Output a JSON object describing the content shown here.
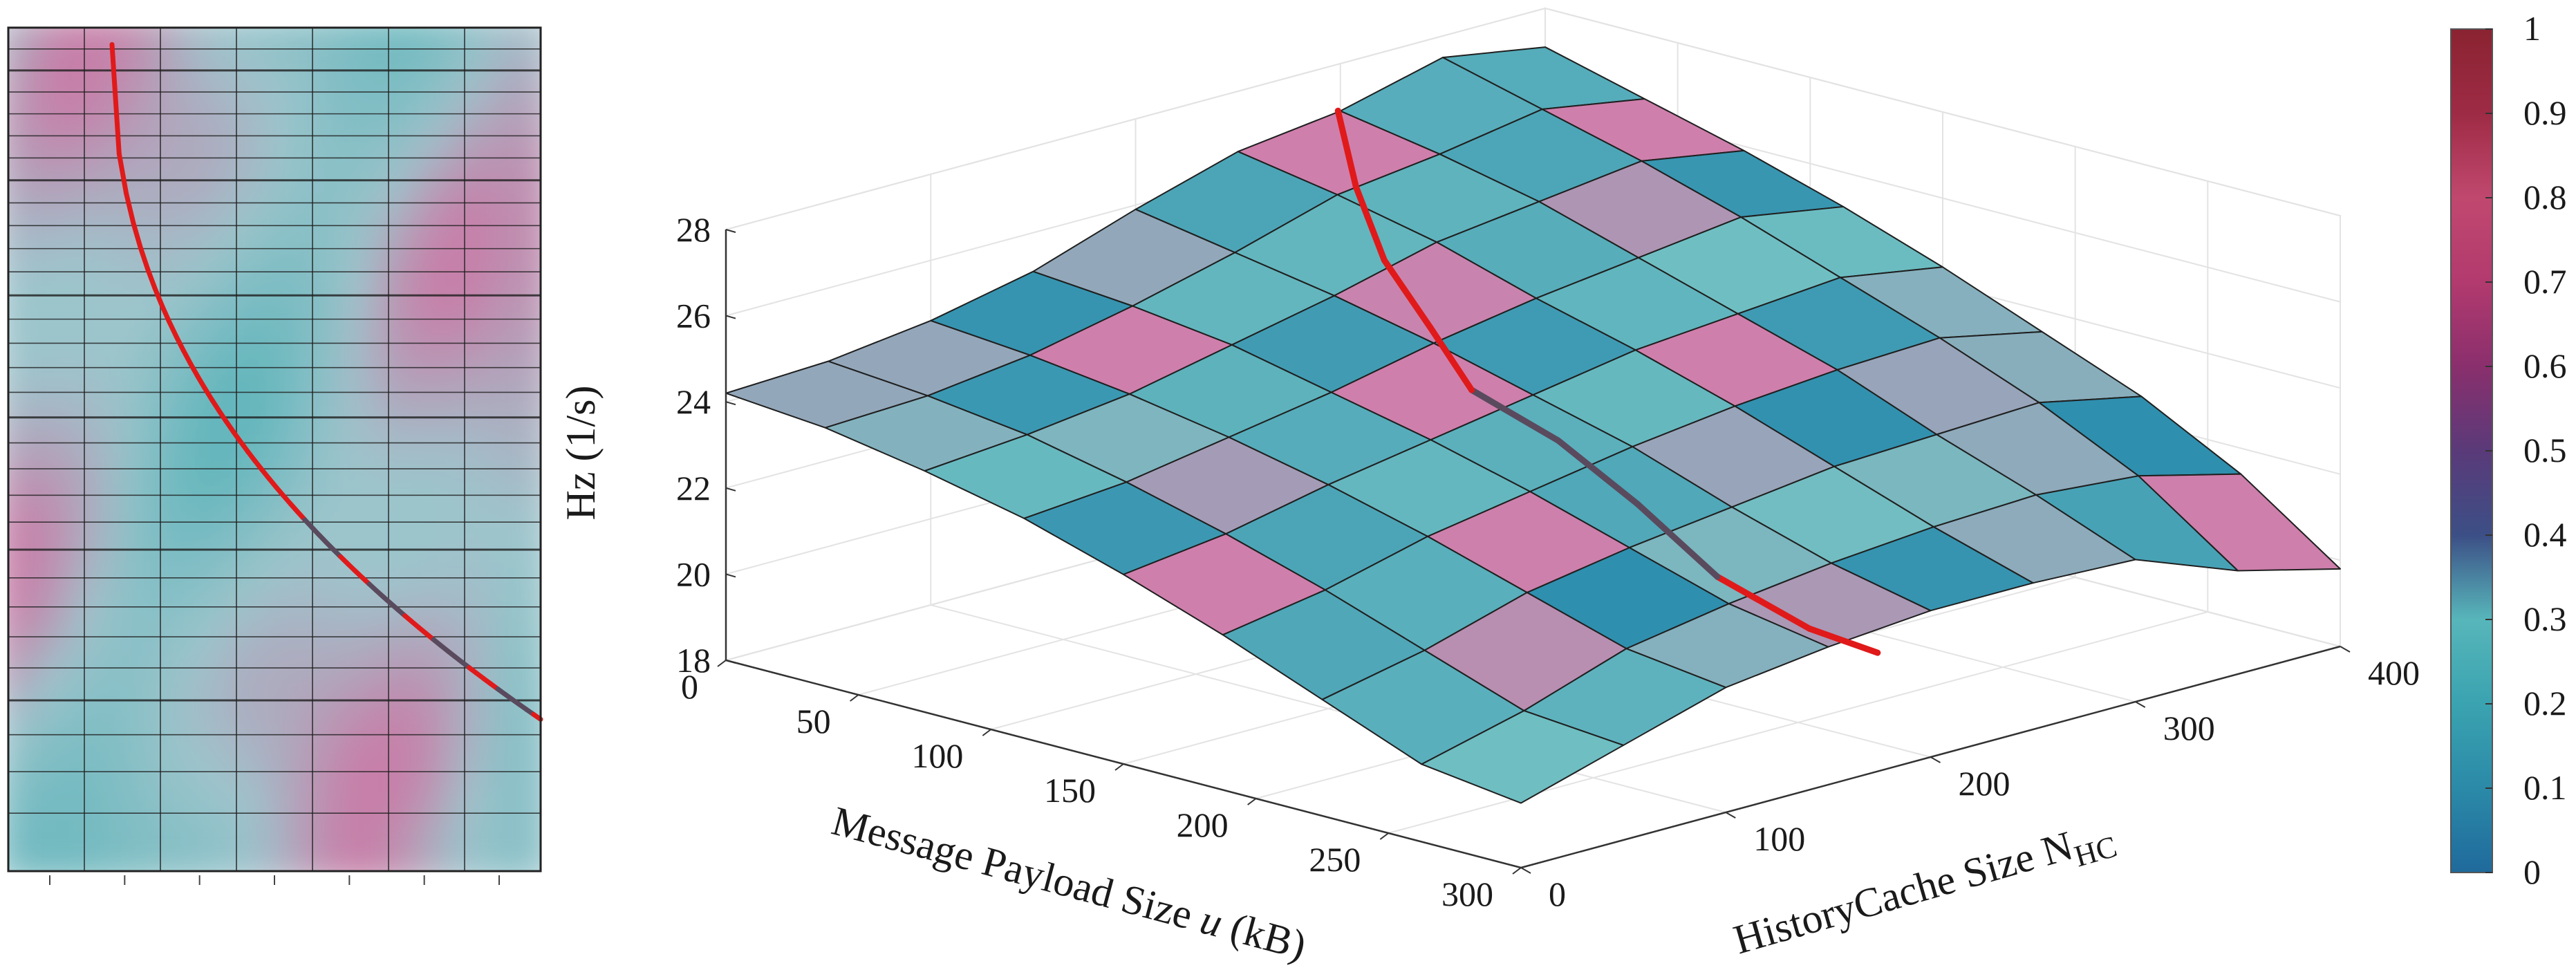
{
  "chart_data": [
    {
      "type": "heatmap",
      "title": "",
      "xlabel": "",
      "ylabel": "",
      "x_tick_count": 7,
      "grid": "on",
      "grid_rows_note": "top view of surface mesh; rows densify toward bottom",
      "curve": {
        "name": "optimal path (top view)",
        "color_segments": [
          "#e01a1a",
          "#5a4a5e"
        ]
      },
      "colormap": [
        "#2b6ea6",
        "#4aa6b3",
        "#86c8c6",
        "#9ab8c6",
        "#c57fa6",
        "#a8446f"
      ]
    },
    {
      "type": "surface3d",
      "title": "",
      "xlabel": "Message Payload Size u (kB)",
      "xlabel_parts": {
        "before": "Message Payload Size ",
        "var": "u",
        "after": " (kB)"
      },
      "ylabel": "HistoryCache Size  N_HC",
      "ylabel_parts": {
        "base": "HistoryCache Size  N",
        "sub": "HC"
      },
      "zlabel": "Hz (1/s)",
      "x_ticks": [
        "0",
        "50",
        "100",
        "150",
        "200",
        "250",
        "300"
      ],
      "y_ticks": [
        "0",
        "100",
        "200",
        "300",
        "400"
      ],
      "z_ticks": [
        "18",
        "20",
        "22",
        "24",
        "26",
        "28"
      ],
      "xlim": [
        0,
        300
      ],
      "ylim": [
        0,
        400
      ],
      "zlim": [
        18,
        28
      ],
      "grid": "on",
      "surface_z": [
        [
          24.2,
          24.3,
          24.6,
          25.1,
          25.9,
          26.6,
          26.9,
          27.5,
          27.1
        ],
        [
          24.0,
          24.1,
          24.4,
          24.9,
          25.5,
          26.2,
          26.5,
          26.9,
          26.5
        ],
        [
          23.6,
          23.8,
          24.1,
          24.6,
          25.1,
          25.7,
          26.0,
          26.3,
          25.9
        ],
        [
          23.1,
          23.3,
          23.7,
          24.1,
          24.6,
          25.0,
          25.3,
          25.6,
          25.2
        ],
        [
          22.4,
          22.7,
          23.2,
          23.6,
          24.0,
          24.4,
          24.6,
          24.8,
          24.4
        ],
        [
          21.6,
          22.0,
          22.6,
          23.0,
          23.4,
          23.7,
          23.9,
          24.0,
          23.5
        ],
        [
          20.7,
          21.2,
          21.9,
          22.3,
          22.6,
          22.9,
          23.0,
          23.1,
          22.6
        ],
        [
          19.8,
          20.4,
          21.2,
          21.6,
          21.9,
          22.1,
          22.2,
          22.0,
          21.4
        ],
        [
          19.5,
          20.2,
          20.9,
          21.2,
          21.4,
          21.4,
          21.3,
          20.4,
          19.8
        ]
      ],
      "path": {
        "name": "optimal frequency path",
        "color_segments": [
          "#e01a1a",
          "#5a4a5e"
        ],
        "points": [
          [
            280,
            200,
            20.1
          ],
          [
            262,
            190,
            20.5
          ],
          [
            235,
            180,
            21.4
          ],
          [
            205,
            180,
            22.6
          ],
          [
            178,
            176,
            23.7
          ],
          [
            150,
            170,
            24.5
          ],
          [
            122,
            186,
            25.3
          ],
          [
            90,
            205,
            26.1
          ],
          [
            60,
            230,
            27.0
          ],
          [
            30,
            260,
            27.9
          ]
        ]
      },
      "colorbar": {
        "ticks": [
          "0",
          "0.1",
          "0.2",
          "0.3",
          "0.4",
          "0.5",
          "0.6",
          "0.7",
          "0.8",
          "0.9",
          "1"
        ],
        "range": [
          0,
          1
        ],
        "colors": [
          "#1f6a9c",
          "#2b8aa8",
          "#3aa3b0",
          "#57b6ba",
          "#3c4f86",
          "#5a3a79",
          "#8a2f6d",
          "#b23a6e",
          "#c0486f",
          "#9e2b45",
          "#8a2331"
        ]
      }
    }
  ]
}
